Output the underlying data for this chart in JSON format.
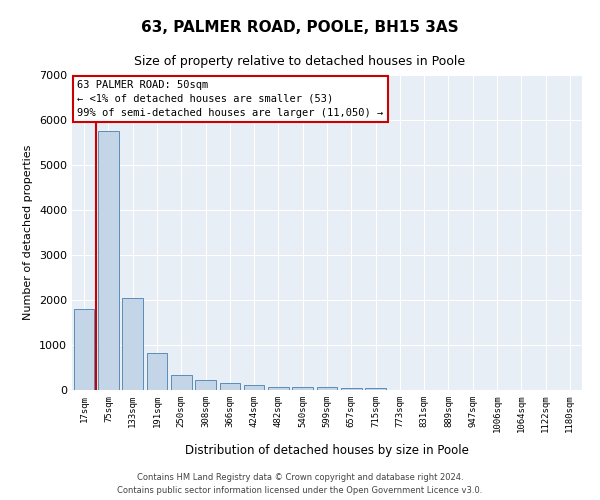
{
  "title": "63, PALMER ROAD, POOLE, BH15 3AS",
  "subtitle": "Size of property relative to detached houses in Poole",
  "xlabel": "Distribution of detached houses by size in Poole",
  "ylabel": "Number of detached properties",
  "categories": [
    "17sqm",
    "75sqm",
    "133sqm",
    "191sqm",
    "250sqm",
    "308sqm",
    "366sqm",
    "424sqm",
    "482sqm",
    "540sqm",
    "599sqm",
    "657sqm",
    "715sqm",
    "773sqm",
    "831sqm",
    "889sqm",
    "947sqm",
    "1006sqm",
    "1064sqm",
    "1122sqm",
    "1180sqm"
  ],
  "values": [
    1800,
    5750,
    2050,
    820,
    340,
    220,
    145,
    105,
    75,
    60,
    60,
    50,
    45,
    0,
    0,
    0,
    0,
    0,
    0,
    0,
    0
  ],
  "bar_color": "#c5d5e8",
  "bar_edge_color": "#5b8db8",
  "highlight_color": "#cc0000",
  "ylim": [
    0,
    7000
  ],
  "yticks": [
    0,
    1000,
    2000,
    3000,
    4000,
    5000,
    6000,
    7000
  ],
  "annotation_text": "63 PALMER ROAD: 50sqm\n← <1% of detached houses are smaller (53)\n99% of semi-detached houses are larger (11,050) →",
  "annotation_box_color": "#cc0000",
  "background_color": "#e8eef5",
  "footer_line1": "Contains HM Land Registry data © Crown copyright and database right 2024.",
  "footer_line2": "Contains public sector information licensed under the Open Government Licence v3.0."
}
